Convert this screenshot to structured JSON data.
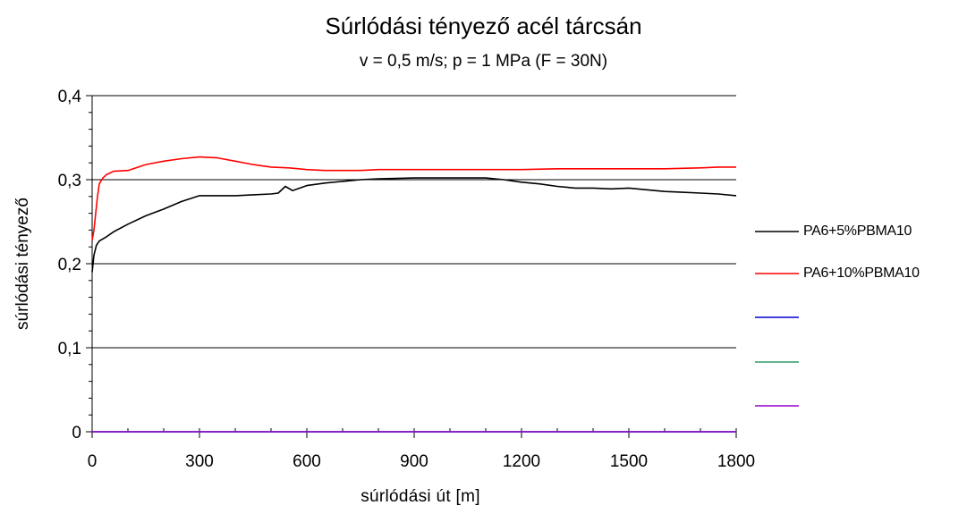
{
  "chart_data": {
    "type": "line",
    "title": "Súrlódási tényező acél tárcsán",
    "subtitle": "v = 0,5 m/s; p = 1 MPa (F = 30N)",
    "xlabel": "súrlódási út [m]",
    "ylabel": "súrlódási tényező",
    "xlim": [
      0,
      1800
    ],
    "ylim": [
      0,
      0.4
    ],
    "xticks": [
      0,
      300,
      600,
      900,
      1200,
      1500,
      1800
    ],
    "xtick_labels": [
      "0",
      "300",
      "600",
      "900",
      "1200",
      "1500",
      "1800"
    ],
    "yticks": [
      0,
      0.1,
      0.2,
      0.3,
      0.4
    ],
    "ytick_labels": [
      "0",
      "0,1",
      "0,2",
      "0,3",
      "0,4"
    ],
    "grid": "horizontal major",
    "legend_position": "right",
    "series": [
      {
        "name": "PA6+5%PBMA10",
        "color": "#000000",
        "x": [
          0,
          5,
          12,
          20,
          40,
          60,
          100,
          150,
          200,
          250,
          300,
          350,
          400,
          450,
          500,
          520,
          540,
          560,
          600,
          650,
          700,
          750,
          800,
          900,
          950,
          1000,
          1050,
          1100,
          1150,
          1200,
          1250,
          1300,
          1350,
          1400,
          1450,
          1500,
          1550,
          1600,
          1650,
          1700,
          1750,
          1800
        ],
        "y": [
          0.19,
          0.21,
          0.222,
          0.227,
          0.232,
          0.238,
          0.247,
          0.257,
          0.265,
          0.274,
          0.281,
          0.281,
          0.281,
          0.282,
          0.283,
          0.284,
          0.292,
          0.287,
          0.293,
          0.296,
          0.298,
          0.3,
          0.301,
          0.302,
          0.302,
          0.302,
          0.302,
          0.302,
          0.3,
          0.297,
          0.295,
          0.292,
          0.29,
          0.29,
          0.289,
          0.29,
          0.288,
          0.286,
          0.285,
          0.284,
          0.283,
          0.281
        ]
      },
      {
        "name": "PA6+10%PBMA10",
        "color": "#ff0000",
        "x": [
          0,
          5,
          10,
          15,
          20,
          30,
          40,
          60,
          100,
          150,
          200,
          250,
          300,
          350,
          400,
          450,
          500,
          550,
          600,
          650,
          700,
          750,
          800,
          900,
          1000,
          1100,
          1200,
          1300,
          1400,
          1500,
          1600,
          1700,
          1750,
          1800
        ],
        "y": [
          0.228,
          0.24,
          0.26,
          0.28,
          0.295,
          0.302,
          0.306,
          0.31,
          0.311,
          0.318,
          0.322,
          0.325,
          0.327,
          0.326,
          0.322,
          0.318,
          0.315,
          0.314,
          0.312,
          0.311,
          0.311,
          0.311,
          0.312,
          0.312,
          0.312,
          0.312,
          0.312,
          0.313,
          0.313,
          0.313,
          0.313,
          0.314,
          0.315,
          0.315
        ]
      },
      {
        "color": "#0000cc"
      },
      {
        "color": "#2e9e6e"
      },
      {
        "color": "#9900cc"
      }
    ]
  }
}
